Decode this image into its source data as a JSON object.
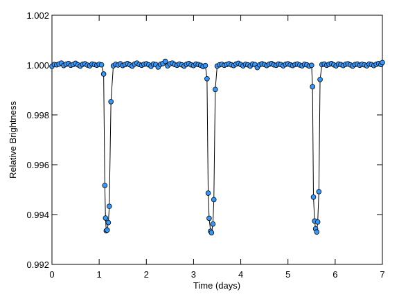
{
  "chart_data": {
    "type": "scatter",
    "xlabel": "Time (days)",
    "ylabel": "Relative Brightness",
    "xlim": [
      0,
      7
    ],
    "ylim": [
      0.992,
      1.002
    ],
    "xticks": [
      0,
      1,
      2,
      3,
      4,
      5,
      6,
      7
    ],
    "yticks": [
      0.992,
      0.994,
      0.996,
      0.998,
      {
        "value": 1,
        "label": "1.000"
      },
      1.002
    ],
    "series": [
      {
        "color": "#3399ff",
        "line_color": "#000000",
        "x": [
          0,
          0.05,
          0.1,
          0.15,
          0.2,
          0.25,
          0.3,
          0.35,
          0.4,
          0.45,
          0.5,
          0.55,
          0.6,
          0.65,
          0.7,
          0.75,
          0.8,
          0.85,
          0.9,
          0.95,
          1.0,
          1.05,
          1.095,
          1.12,
          1.135,
          1.15,
          1.17,
          1.195,
          1.215,
          1.25,
          1.3,
          1.35,
          1.4,
          1.45,
          1.5,
          1.55,
          1.6,
          1.65,
          1.7,
          1.75,
          1.8,
          1.85,
          1.9,
          1.95,
          2.0,
          2.05,
          2.1,
          2.15,
          2.2,
          2.25,
          2.3,
          2.35,
          2.4,
          2.45,
          2.5,
          2.55,
          2.6,
          2.65,
          2.7,
          2.75,
          2.8,
          2.85,
          2.9,
          2.95,
          3.0,
          3.05,
          3.1,
          3.15,
          3.2,
          3.25,
          3.285,
          3.31,
          3.33,
          3.36,
          3.38,
          3.41,
          3.43,
          3.46,
          3.5,
          3.55,
          3.6,
          3.65,
          3.7,
          3.75,
          3.8,
          3.85,
          3.9,
          3.95,
          4.0,
          4.05,
          4.1,
          4.15,
          4.2,
          4.25,
          4.3,
          4.35,
          4.4,
          4.45,
          4.5,
          4.55,
          4.6,
          4.65,
          4.7,
          4.75,
          4.8,
          4.85,
          4.9,
          4.95,
          5.0,
          5.05,
          5.1,
          5.15,
          5.2,
          5.25,
          5.3,
          5.35,
          5.4,
          5.45,
          5.5,
          5.52,
          5.54,
          5.565,
          5.585,
          5.61,
          5.63,
          5.655,
          5.68,
          5.72,
          5.77,
          5.82,
          5.87,
          5.92,
          5.97,
          6.02,
          6.07,
          6.12,
          6.17,
          6.22,
          6.27,
          6.32,
          6.37,
          6.42,
          6.47,
          6.52,
          6.57,
          6.62,
          6.67,
          6.72,
          6.77,
          6.82,
          6.87,
          6.92,
          6.97,
          7.0
        ],
        "values": [
          0.99995,
          1.00002,
          1.00001,
          1.00004,
          1.00008,
          0.99998,
          1.00003,
          1.00006,
          0.99999,
          1.00002,
          1.00007,
          1.00001,
          0.99996,
          1.00003,
          1.00005,
          1.0,
          0.99997,
          1.00004,
          1.00002,
          0.99999,
          1.00003,
          1.00001,
          0.99964,
          0.99517,
          0.99386,
          0.99335,
          0.99338,
          0.99368,
          0.99433,
          0.99853,
          0.99997,
          1.00003,
          1.0,
          1.00005,
          0.99998,
          1.00002,
          1.00006,
          1.00001,
          0.99996,
          1.00004,
          1.00008,
          1.00002,
          0.99999,
          1.00003,
          1.00005,
          1.00001,
          0.99995,
          1.00004,
          1.00002,
          0.99992,
          1.00003,
          1.00006,
          1.00015,
          0.99997,
          1.00005,
          1.00008,
          1.00002,
          0.99999,
          1.00004,
          1.00001,
          0.99996,
          1.00003,
          1.00006,
          1.00001,
          0.99998,
          1.00004,
          1.00002,
          0.99999,
          0.99994,
          0.99998,
          0.99945,
          0.99486,
          0.99385,
          0.99333,
          0.99327,
          0.99362,
          0.9946,
          0.99902,
          0.99996,
          1.00001,
          1.00003,
          0.99999,
          1.00002,
          1.00005,
          1.00001,
          0.99998,
          1.00004,
          1.00007,
          1.00002,
          0.99997,
          1.00003,
          1.00001,
          0.99996,
          1.00004,
          1.00002,
          0.9999,
          1.00001,
          1.00005,
          1.00002,
          0.99998,
          1.00003,
          1.00006,
          1.00001,
          0.99999,
          1.00004,
          1.00002,
          0.99997,
          1.00003,
          1.00005,
          1.00001,
          0.99998,
          1.00002,
          1.00004,
          1.0,
          0.99997,
          1.00003,
          1.00001,
          0.99996,
          0.99999,
          0.99913,
          0.9947,
          0.99374,
          0.99343,
          0.9933,
          0.9937,
          0.99492,
          0.99942,
          1.00002,
          1.00004,
          0.99999,
          1.00003,
          1.00006,
          1.00001,
          0.99997,
          1.00004,
          1.00002,
          0.99998,
          1.00003,
          1.00005,
          1.00001,
          0.99996,
          1.00002,
          1.00004,
          0.99999,
          1.00003,
          1.00001,
          0.99997,
          1.00004,
          1.00002,
          0.99998,
          1.00003,
          1.00006,
          1.00002,
          1.0001
        ]
      }
    ]
  }
}
